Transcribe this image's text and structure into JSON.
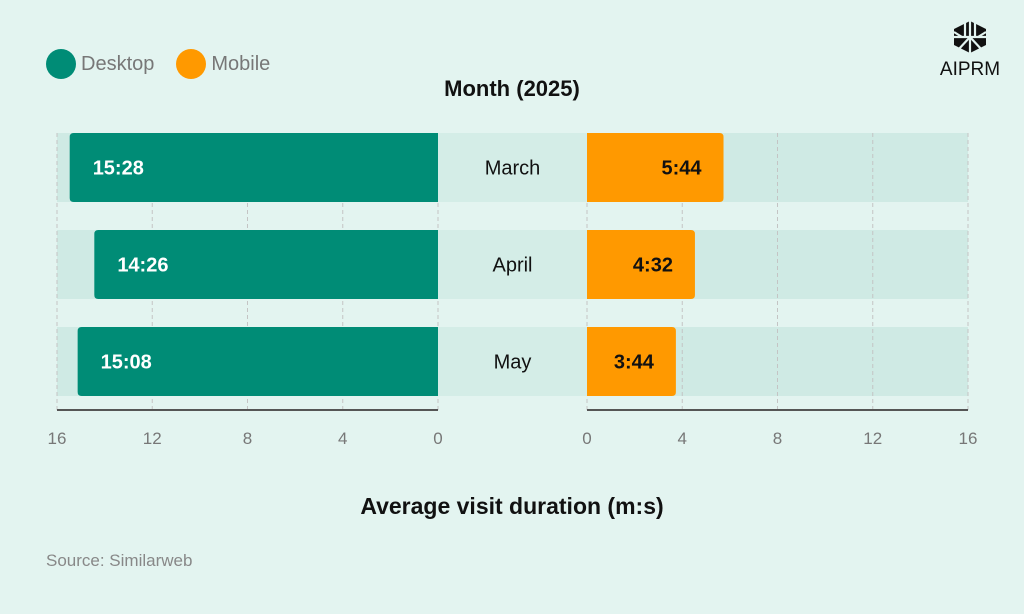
{
  "chart_data": {
    "type": "bar",
    "orientation": "horizontal-butterfly",
    "title": "Month (2025)",
    "xlabel": "Average visit duration (m:s)",
    "categories": [
      "March",
      "April",
      "May"
    ],
    "series": [
      {
        "name": "Desktop",
        "color": "#008c76",
        "values": [
          15.467,
          14.433,
          15.133
        ],
        "labels": [
          "15:28",
          "14:26",
          "15:08"
        ]
      },
      {
        "name": "Mobile",
        "color": "#ff9900",
        "values": [
          5.733,
          4.533,
          3.733
        ],
        "labels": [
          "5:44",
          "4:32",
          "3:44"
        ]
      }
    ],
    "xlim": [
      0,
      16
    ],
    "ticks": [
      "0",
      "4",
      "8",
      "12",
      "16"
    ],
    "tick_values": [
      0,
      4,
      8,
      12,
      16
    ],
    "grid": true,
    "legend_position": "top-left"
  },
  "source": "Source: Similarweb",
  "logo": "AIPRM"
}
